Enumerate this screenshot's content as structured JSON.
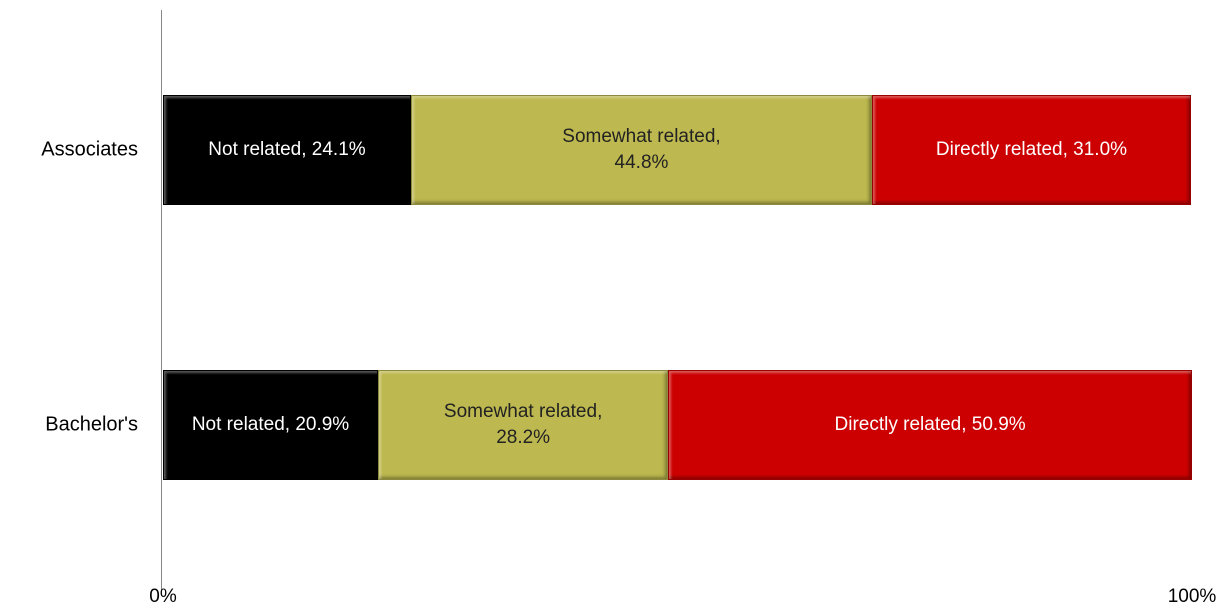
{
  "chart_data": {
    "type": "stacked-bar-horizontal",
    "categories": [
      "Associates",
      "Bachelor's"
    ],
    "series": [
      {
        "color": "#000000",
        "values": [
          24.1,
          20.9
        ],
        "value_labels": [
          "Not related, 24.1%",
          "Not related, 20.9%"
        ]
      },
      {
        "color": "#bdb84f",
        "values": [
          44.8,
          28.2
        ],
        "value_labels": [
          "Somewhat related, 44.8%",
          "Somewhat related, 28.2%"
        ]
      },
      {
        "color": "#cc0000",
        "values": [
          31.0,
          50.9
        ],
        "value_labels": [
          "Directly related, 31.0%",
          "Directly related, 50.9%"
        ]
      }
    ],
    "xlim": [
      0,
      100
    ],
    "xticks": [
      {
        "value": 0,
        "label": "0%"
      },
      {
        "value": 100,
        "label": "100%"
      }
    ]
  }
}
